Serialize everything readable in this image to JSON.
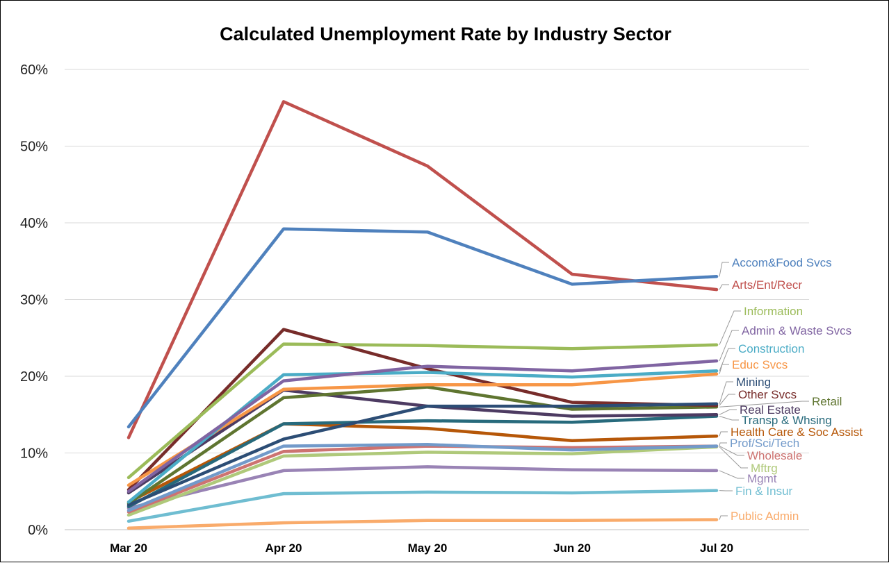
{
  "chart_data": {
    "type": "line",
    "title": "Calculated Unemployment Rate by Industry Sector",
    "xlabel": "",
    "ylabel": "",
    "categories": [
      "Mar 20",
      "Apr 20",
      "May 20",
      "Jun 20",
      "Jul 20"
    ],
    "ylim": [
      0,
      60
    ],
    "yticks": [
      "0%",
      "10%",
      "20%",
      "30%",
      "40%",
      "50%",
      "60%"
    ],
    "grid": "horizontal",
    "legend": "direct labels at right",
    "series": [
      {
        "name": "Accom&Food Svcs",
        "color": "#4f81bd",
        "values": [
          13.4,
          39.2,
          38.8,
          32.0,
          33.0
        ]
      },
      {
        "name": "Arts/Ent/Recr",
        "color": "#c0504d",
        "values": [
          12.0,
          55.8,
          47.4,
          33.3,
          31.3
        ]
      },
      {
        "name": "Information",
        "color": "#9bbb59",
        "values": [
          6.8,
          24.2,
          24.0,
          23.6,
          24.1
        ]
      },
      {
        "name": "Admin & Waste Svcs",
        "color": "#8064a2",
        "values": [
          5.0,
          19.4,
          21.3,
          20.7,
          22.0
        ]
      },
      {
        "name": "Construction",
        "color": "#4bacc6",
        "values": [
          3.6,
          20.2,
          20.5,
          19.9,
          20.7
        ]
      },
      {
        "name": "Educ Svcs",
        "color": "#f79646",
        "values": [
          5.8,
          18.3,
          18.9,
          18.9,
          20.3
        ]
      },
      {
        "name": "Mining",
        "color": "#2c4d75",
        "values": [
          3.2,
          11.8,
          16.1,
          16.1,
          16.4
        ]
      },
      {
        "name": "Other Svcs",
        "color": "#772c2a",
        "values": [
          5.2,
          26.1,
          21.0,
          16.6,
          16.2
        ]
      },
      {
        "name": "Retail",
        "color": "#5f7530",
        "values": [
          3.4,
          17.2,
          18.6,
          15.7,
          16.0
        ]
      },
      {
        "name": "Real Estate",
        "color": "#4d3b62",
        "values": [
          4.8,
          18.2,
          16.1,
          14.8,
          15.0
        ]
      },
      {
        "name": "Transp & Whsing",
        "color": "#276a7c",
        "values": [
          3.0,
          13.8,
          14.2,
          14.0,
          14.8
        ]
      },
      {
        "name": "Health Care & Soc Assist",
        "color": "#b65708",
        "values": [
          3.6,
          13.8,
          13.2,
          11.6,
          12.2
        ]
      },
      {
        "name": "Prof/Sci/Tech",
        "color": "#729aca",
        "values": [
          2.5,
          10.9,
          11.1,
          10.4,
          10.9
        ]
      },
      {
        "name": "Wholesale",
        "color": "#cd7371",
        "values": [
          2.3,
          10.2,
          10.9,
          10.7,
          10.9
        ]
      },
      {
        "name": "Mftrg",
        "color": "#afc97a",
        "values": [
          1.9,
          9.6,
          10.1,
          9.9,
          10.8
        ]
      },
      {
        "name": "Mgmt",
        "color": "#9983b5",
        "values": [
          2.8,
          7.7,
          8.2,
          7.8,
          7.7
        ]
      },
      {
        "name": "Fin & Insur",
        "color": "#6fbdd1",
        "values": [
          1.1,
          4.7,
          4.9,
          4.8,
          5.1
        ]
      },
      {
        "name": "Public Admin",
        "color": "#f9ab6b",
        "values": [
          0.2,
          0.9,
          1.2,
          1.2,
          1.3
        ]
      }
    ]
  }
}
